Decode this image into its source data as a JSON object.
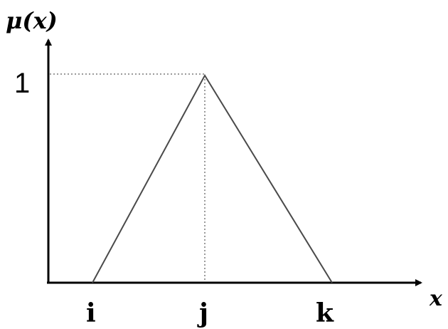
{
  "diagram": {
    "y_axis_label": "μ(x)",
    "x_axis_label": "x",
    "y_tick_label": "1",
    "x_point_labels": {
      "left_foot": "i",
      "peak": "j",
      "right_foot": "k"
    },
    "colors": {
      "axis": "#000000",
      "triangle": "#4a4a4a",
      "guide": "#7a7a7a",
      "text": "#000000"
    }
  }
}
